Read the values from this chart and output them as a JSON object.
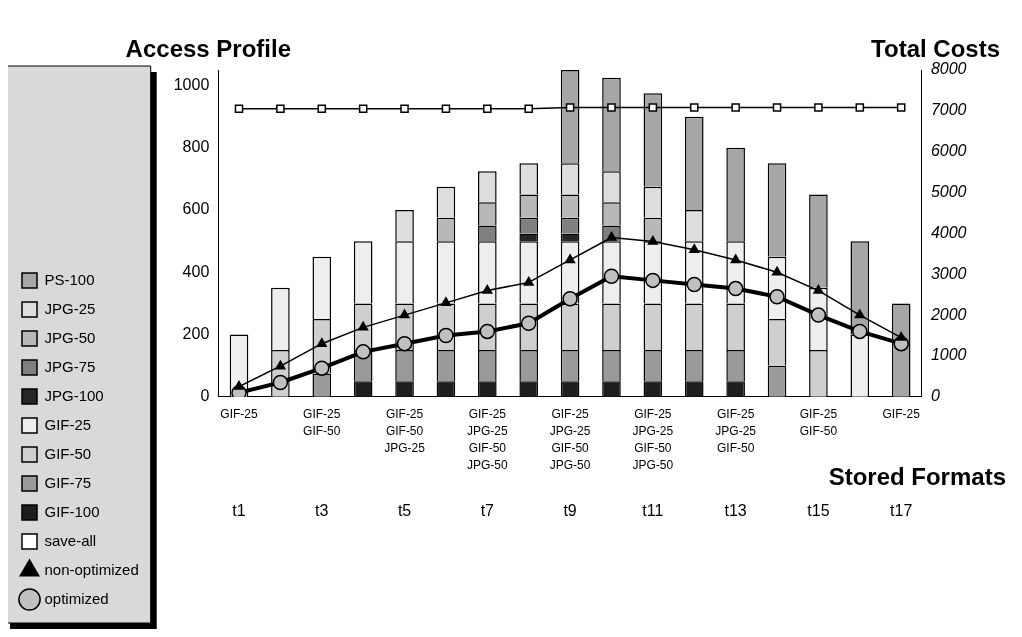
{
  "chart_data": {
    "type": "bar",
    "stacked": true,
    "ylabel": "Access Profile",
    "y2label": "Total Costs",
    "xlabel": "Stored Formats",
    "categories": [
      "t1",
      null,
      "t3",
      null,
      "t5",
      null,
      "t7",
      null,
      "t9",
      null,
      "t11",
      null,
      "t13",
      null,
      "t15",
      null,
      "t17"
    ],
    "series": [
      {
        "name": "GIF-100",
        "color": "#1e1e1e",
        "values": [
          null,
          null,
          null,
          50,
          50,
          50,
          50,
          50,
          50,
          50,
          50,
          50,
          50,
          null,
          null,
          null,
          null
        ]
      },
      {
        "name": "GIF-75",
        "color": "#9a9a9a",
        "values": [
          null,
          null,
          75,
          100,
          100,
          100,
          100,
          100,
          100,
          100,
          100,
          100,
          100,
          100,
          null,
          null,
          null
        ]
      },
      {
        "name": "GIF-50",
        "color": "#cfcfcf",
        "values": [
          null,
          150,
          175,
          150,
          150,
          150,
          150,
          150,
          150,
          150,
          150,
          150,
          150,
          150,
          150,
          null,
          null
        ]
      },
      {
        "name": "GIF-25",
        "color": "#eeeeee",
        "values": [
          200,
          200,
          200,
          200,
          200,
          200,
          200,
          200,
          200,
          200,
          200,
          200,
          200,
          200,
          200,
          200,
          null
        ]
      },
      {
        "name": "JPG-100",
        "color": "#262626",
        "values": [
          null,
          null,
          null,
          null,
          null,
          null,
          null,
          25,
          25,
          null,
          null,
          null,
          null,
          null,
          null,
          null,
          null
        ]
      },
      {
        "name": "JPG-75",
        "color": "#808080",
        "values": [
          null,
          null,
          null,
          null,
          null,
          null,
          50,
          50,
          50,
          50,
          null,
          null,
          null,
          null,
          null,
          null,
          null
        ]
      },
      {
        "name": "JPG-50",
        "color": "#b8b8b8",
        "values": [
          null,
          null,
          null,
          null,
          null,
          75,
          75,
          75,
          75,
          75,
          75,
          null,
          null,
          null,
          null,
          null,
          null
        ]
      },
      {
        "name": "JPG-25",
        "color": "#dedede",
        "values": [
          null,
          null,
          null,
          null,
          100,
          100,
          100,
          100,
          100,
          100,
          100,
          100,
          null,
          null,
          null,
          null,
          null
        ]
      },
      {
        "name": "PS-100",
        "color": "#a6a6a6",
        "values": [
          null,
          null,
          null,
          null,
          null,
          null,
          null,
          null,
          300,
          300,
          300,
          300,
          300,
          300,
          300,
          300,
          300
        ]
      },
      {
        "name": "save-all",
        "type": "line",
        "axis": "y2",
        "marker": "square",
        "color": "#000000",
        "values": [
          7050,
          7050,
          7050,
          7050,
          7050,
          7050,
          7050,
          7050,
          7080,
          7080,
          7080,
          7080,
          7080,
          7080,
          7080,
          7080,
          7080
        ]
      },
      {
        "name": "non-optimized",
        "type": "line",
        "axis": "y2",
        "marker": "triangle",
        "color": "#000000",
        "values": [
          250,
          750,
          1300,
          1700,
          2000,
          2300,
          2600,
          2800,
          3350,
          3900,
          3800,
          3600,
          3350,
          3050,
          2600,
          2000,
          1450
        ]
      },
      {
        "name": "optimized",
        "type": "line",
        "axis": "y2",
        "marker": "circle",
        "color": "#000000",
        "values": [
          100,
          350,
          700,
          1100,
          1300,
          1500,
          1600,
          1800,
          2400,
          2950,
          2850,
          2750,
          2650,
          2450,
          2000,
          1600,
          1300
        ]
      }
    ],
    "ylim": [
      0,
      1050
    ],
    "yticks": [
      0,
      200,
      400,
      600,
      800,
      1000
    ],
    "y2lim": [
      0,
      8000
    ],
    "y2ticks": [
      0,
      1000,
      2000,
      3000,
      4000,
      5000,
      6000,
      7000,
      8000
    ],
    "legend": "left",
    "grid": false,
    "annotations": [
      "GIF-25",
      "GIF-25\nGIF-50",
      "GIF-25\nGIF-50\nJPG-25",
      "GIF-25\nJPG-25\nGIF-50\nJPG-50",
      "GIF-25\nJPG-25\nGIF-50\nJPG-50",
      "GIF-25\nJPG-25\nGIF-50\nJPG-50",
      "GIF-25\nJPG-25\nGIF-50",
      "GIF-25\nGIF-50",
      "GIF-25"
    ]
  }
}
